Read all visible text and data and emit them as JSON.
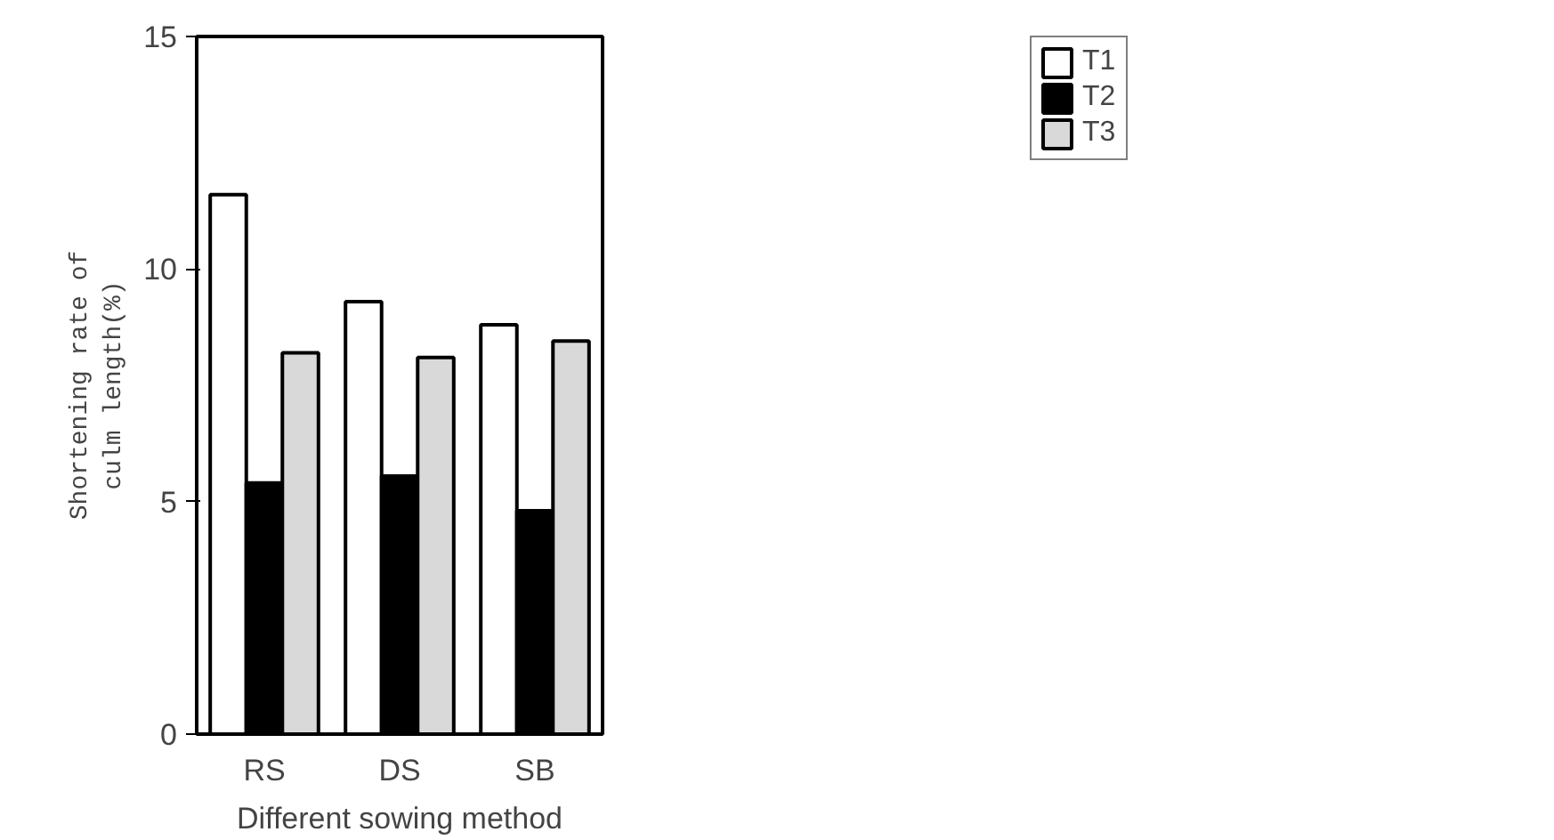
{
  "chart_data": {
    "type": "bar",
    "xlabel": "Different sowing method",
    "ylabel": "Shortening rate of\nculm length(%)",
    "categories": [
      "RS",
      "DS",
      "SB"
    ],
    "series": [
      {
        "name": "T1",
        "color": "#ffffff",
        "values": [
          11.6,
          9.3,
          8.8
        ]
      },
      {
        "name": "T2",
        "color": "#000000",
        "values": [
          5.4,
          5.55,
          4.8
        ]
      },
      {
        "name": "T3",
        "color": "#d9d9d9",
        "values": [
          8.2,
          8.1,
          8.45
        ]
      }
    ],
    "ylim": [
      0,
      15
    ],
    "yticks": [
      0,
      5,
      10,
      15
    ],
    "grid": false,
    "legend": "top right"
  }
}
